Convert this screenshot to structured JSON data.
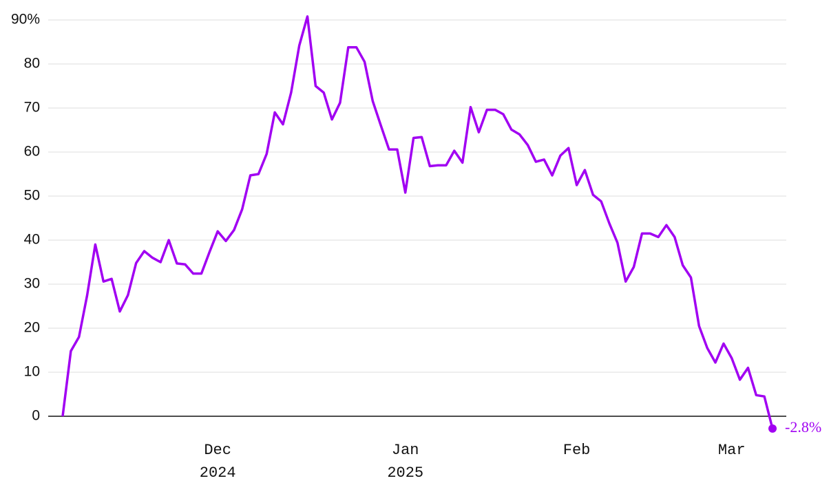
{
  "chart_data": {
    "type": "line",
    "categories": [
      null,
      null,
      null,
      null,
      null,
      null,
      null,
      null,
      null,
      null,
      null,
      null,
      null,
      null,
      null,
      null,
      null,
      null,
      null,
      "Dec\n2024",
      null,
      null,
      null,
      null,
      null,
      null,
      null,
      null,
      null,
      null,
      null,
      null,
      null,
      null,
      null,
      null,
      null,
      null,
      null,
      null,
      null,
      null,
      "Jan\n2025",
      null,
      null,
      null,
      null,
      null,
      null,
      null,
      null,
      null,
      null,
      null,
      null,
      null,
      null,
      null,
      null,
      null,
      null,
      null,
      null,
      "Feb",
      null,
      null,
      null,
      null,
      null,
      null,
      null,
      null,
      null,
      null,
      null,
      null,
      null,
      null,
      null,
      null,
      null,
      null,
      "Mar",
      null,
      null,
      null,
      null,
      null
    ],
    "series": [
      {
        "color": "#a100f2",
        "values": [
          0,
          14.8,
          18,
          27.5,
          39,
          30.6,
          31.2,
          23.8,
          27.5,
          34.8,
          37.5,
          36,
          35,
          40,
          34.7,
          34.5,
          32.4,
          32.4,
          37.3,
          42,
          39.8,
          42.3,
          47,
          54.7,
          55,
          59.6,
          69,
          66.3,
          73.5,
          84.2,
          90.8,
          75,
          73.5,
          67.4,
          71.2,
          83.8,
          83.8,
          80.5,
          71.6,
          66,
          60.6,
          60.6,
          50.8,
          63.2,
          63.4,
          56.8,
          57,
          57,
          60.3,
          57.6,
          70.2,
          64.5,
          69.6,
          69.6,
          68.6,
          65.1,
          64,
          61.6,
          57.8,
          58.3,
          54.7,
          59.2,
          60.9,
          52.5,
          55.9,
          50.3,
          48.8,
          43.8,
          39.4,
          30.6,
          33.9,
          41.5,
          41.5,
          40.7,
          43.4,
          40.7,
          34.3,
          31.5,
          20.5,
          15.5,
          12.2,
          16.5,
          13.2,
          8.3,
          11,
          4.8,
          4.5,
          -2.8
        ],
        "value_labels": [
          null,
          null,
          null,
          null,
          null,
          null,
          null,
          null,
          null,
          null,
          null,
          null,
          null,
          null,
          null,
          null,
          null,
          null,
          null,
          null,
          null,
          null,
          null,
          null,
          null,
          null,
          null,
          null,
          null,
          null,
          null,
          null,
          null,
          null,
          null,
          null,
          null,
          null,
          null,
          null,
          null,
          null,
          null,
          null,
          null,
          null,
          null,
          null,
          null,
          null,
          null,
          null,
          null,
          null,
          null,
          null,
          null,
          null,
          null,
          null,
          null,
          null,
          null,
          null,
          null,
          null,
          null,
          null,
          null,
          null,
          null,
          null,
          null,
          null,
          null,
          null,
          null,
          null,
          null,
          null,
          null,
          null,
          null,
          null,
          null,
          null,
          null,
          "-2.8%"
        ]
      }
    ],
    "ylim": [
      -4,
      92
    ],
    "yticks": [
      0,
      10,
      20,
      30,
      40,
      50,
      60,
      70,
      80,
      {
        "value": 90,
        "label": "90%"
      }
    ],
    "grid": true
  }
}
